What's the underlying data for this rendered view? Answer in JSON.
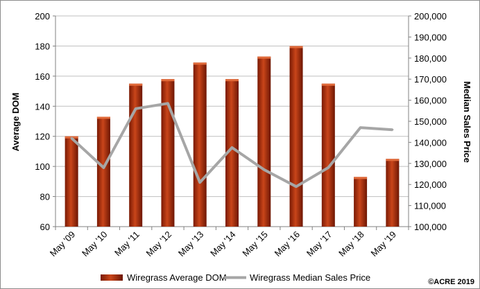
{
  "chart_data": {
    "type": "bar",
    "categories": [
      "May '09",
      "May '10",
      "May '11",
      "May '12",
      "May '13",
      "May '14",
      "May '15",
      "May '16",
      "May '17",
      "May '18",
      "May '19"
    ],
    "series": [
      {
        "name": "Wiregrass Average DOM",
        "type": "bar",
        "axis": "left",
        "color": "#b5300b",
        "values": [
          120,
          133,
          155,
          158,
          169,
          158,
          173,
          180,
          155,
          93,
          105
        ]
      },
      {
        "name": "Wiregrass Median Sales Price",
        "type": "line",
        "axis": "right",
        "color": "#a6a6a6",
        "values": [
          142000,
          128000,
          156000,
          158500,
          121000,
          137500,
          127000,
          119000,
          128000,
          147000,
          146000
        ]
      }
    ],
    "ylabel": "Average DOM",
    "ylim": [
      60,
      200
    ],
    "yticks": [
      "60",
      "80",
      "100",
      "120",
      "140",
      "160",
      "180",
      "200"
    ],
    "y2label": "Median Sales Price",
    "y2lim": [
      100000,
      200000
    ],
    "y2ticks": [
      "100,000",
      "110,000",
      "120,000",
      "130,000",
      "140,000",
      "150,000",
      "160,000",
      "170,000",
      "180,000",
      "190,000",
      "200,000"
    ],
    "grid": true,
    "legend_position": "bottom"
  },
  "copyright": "©ACRE 2019"
}
